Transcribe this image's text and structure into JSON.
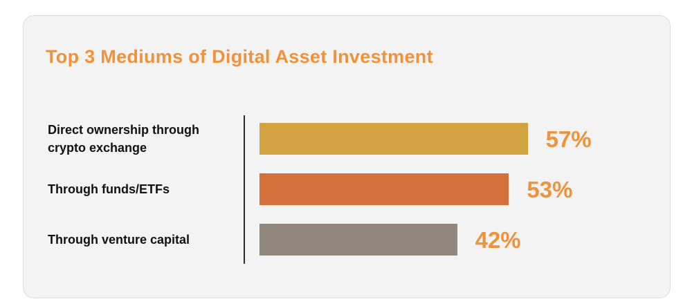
{
  "chart_data": {
    "type": "bar",
    "orientation": "horizontal",
    "title": "Top 3 Mediums of Digital Asset Investment",
    "categories": [
      "Direct ownership through crypto exchange",
      "Through funds/ETFs",
      "Through venture capital"
    ],
    "values": [
      57,
      53,
      42
    ],
    "value_labels": [
      "57%",
      "53%",
      "42%"
    ],
    "unit": "%",
    "bar_colors": [
      "#d4a341",
      "#d4703a",
      "#8f877b"
    ],
    "value_color": "#f0923a",
    "xlim": [
      0,
      100
    ],
    "grid": false,
    "legend": "none"
  }
}
